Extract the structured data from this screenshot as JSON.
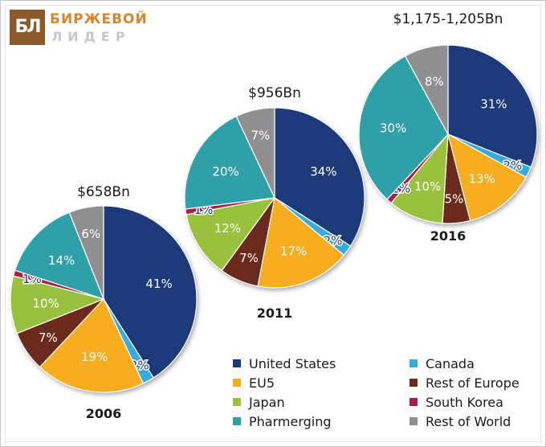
{
  "logo": {
    "mark": "БЛ",
    "line1": "БИРЖЕВОЙ",
    "line2": "ЛИДЕР"
  },
  "colors": {
    "United States": "#1c3a7a",
    "Canada": "#35ace0",
    "EU5": "#f7ad1f",
    "Rest of Europe": "#6b2b1c",
    "Japan": "#9ac13e",
    "South Korea": "#a81e4a",
    "Pharmerging": "#2f9fa8",
    "Rest of World": "#8f8f8f"
  },
  "chart_data": [
    {
      "type": "pie",
      "year": "2006",
      "total": "$658Bn",
      "slices": [
        {
          "name": "United States",
          "value": 41,
          "label": "41%"
        },
        {
          "name": "Canada",
          "value": 2,
          "label": "2%"
        },
        {
          "name": "EU5",
          "value": 19,
          "label": "19%"
        },
        {
          "name": "Rest of Europe",
          "value": 7,
          "label": "7%"
        },
        {
          "name": "Japan",
          "value": 10,
          "label": "10%"
        },
        {
          "name": "South Korea",
          "value": 1,
          "label": "1%"
        },
        {
          "name": "Pharmerging",
          "value": 14,
          "label": "14%"
        },
        {
          "name": "Rest of World",
          "value": 6,
          "label": "6%"
        }
      ]
    },
    {
      "type": "pie",
      "year": "2011",
      "total": "$956Bn",
      "slices": [
        {
          "name": "United States",
          "value": 34,
          "label": "34%"
        },
        {
          "name": "Canada",
          "value": 2,
          "label": "2%"
        },
        {
          "name": "EU5",
          "value": 17,
          "label": "17%"
        },
        {
          "name": "Rest of Europe",
          "value": 7,
          "label": "7%"
        },
        {
          "name": "Japan",
          "value": 12,
          "label": "12%"
        },
        {
          "name": "South Korea",
          "value": 1,
          "label": "1%"
        },
        {
          "name": "Pharmerging",
          "value": 20,
          "label": "20%"
        },
        {
          "name": "Rest of World",
          "value": 7,
          "label": "7%"
        }
      ]
    },
    {
      "type": "pie",
      "year": "2016",
      "total": "$1,175-1,205Bn",
      "slices": [
        {
          "name": "United States",
          "value": 31,
          "label": "31%"
        },
        {
          "name": "Canada",
          "value": 2,
          "label": "2%"
        },
        {
          "name": "EU5",
          "value": 13,
          "label": "13%"
        },
        {
          "name": "Rest of Europe",
          "value": 5,
          "label": "5%"
        },
        {
          "name": "Japan",
          "value": 10,
          "label": "10%"
        },
        {
          "name": "South Korea",
          "value": 1,
          "label": "1%"
        },
        {
          "name": "Pharmerging",
          "value": 30,
          "label": "30%"
        },
        {
          "name": "Rest of World",
          "value": 8,
          "label": "8%"
        }
      ]
    }
  ],
  "legend": [
    "United States",
    "Canada",
    "EU5",
    "Rest of Europe",
    "Japan",
    "South Korea",
    "Pharmerging",
    "Rest of World"
  ]
}
